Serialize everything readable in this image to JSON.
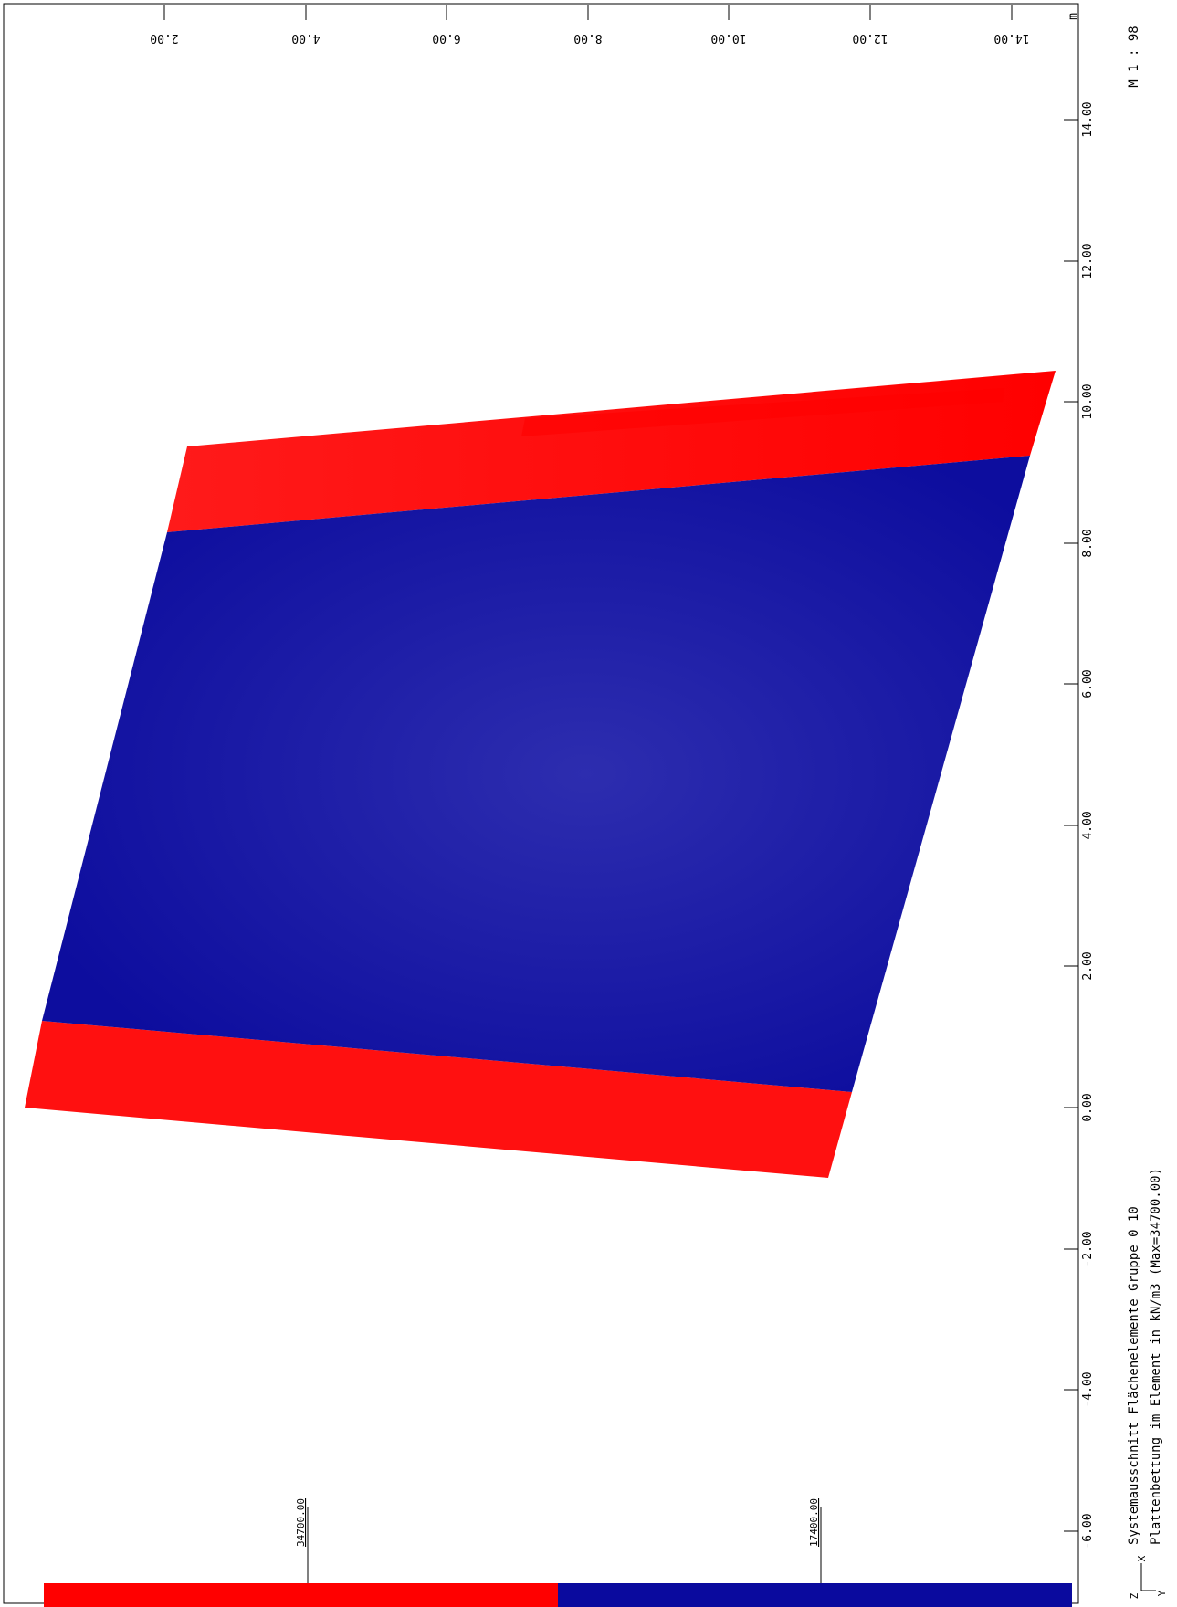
{
  "header": {
    "scale": "M 1 : 98",
    "unit": "m"
  },
  "footer": {
    "title_line1": "Systemausschnitt Flächenelemente Gruppe 0 10",
    "title_line2": "Plattenbettung im Element in kN/m3 (Max=34700.00)"
  },
  "axes": {
    "top_ticks": [
      "2.00",
      "4.00",
      "6.00",
      "8.00",
      "10.00",
      "12.00",
      "14.00"
    ],
    "right_ticks": [
      "14.00",
      "12.00",
      "10.00",
      "8.00",
      "6.00",
      "4.00",
      "2.00",
      "0.00",
      "-2.00",
      "-4.00",
      "-6.00"
    ],
    "triad": {
      "z": "Z",
      "x": "X",
      "y": "Y"
    }
  },
  "legend": {
    "high_label": "34700.00",
    "low_label": "17400.00",
    "high_color": "#ff0000",
    "low_color": "#0a0a9e"
  },
  "colors": {
    "edge_red": "#ff1010",
    "slab_blue": "#1414a6",
    "slab_blue_center": "#2d2daf"
  }
}
